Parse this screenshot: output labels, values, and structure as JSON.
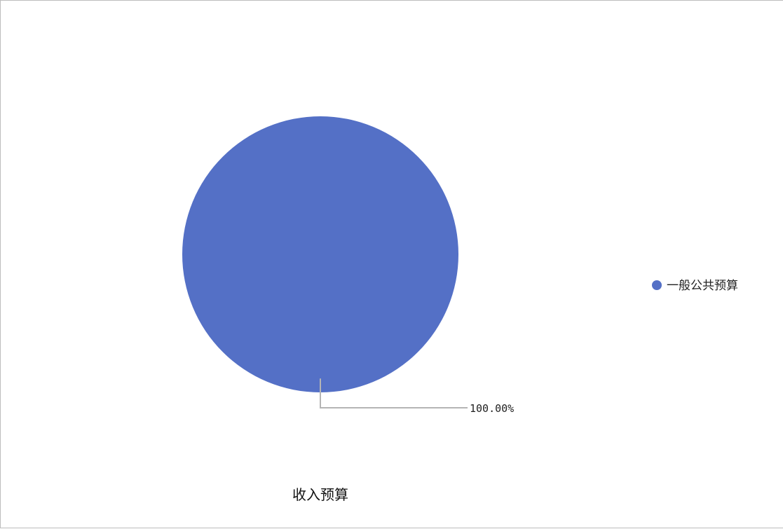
{
  "chart_data": {
    "type": "pie",
    "title": "收入预算",
    "categories": [
      "一般公共预算"
    ],
    "values": [
      100.0
    ],
    "data_labels": [
      "100.00%"
    ],
    "colors": [
      "#5470c6"
    ],
    "legend_position": "right"
  }
}
